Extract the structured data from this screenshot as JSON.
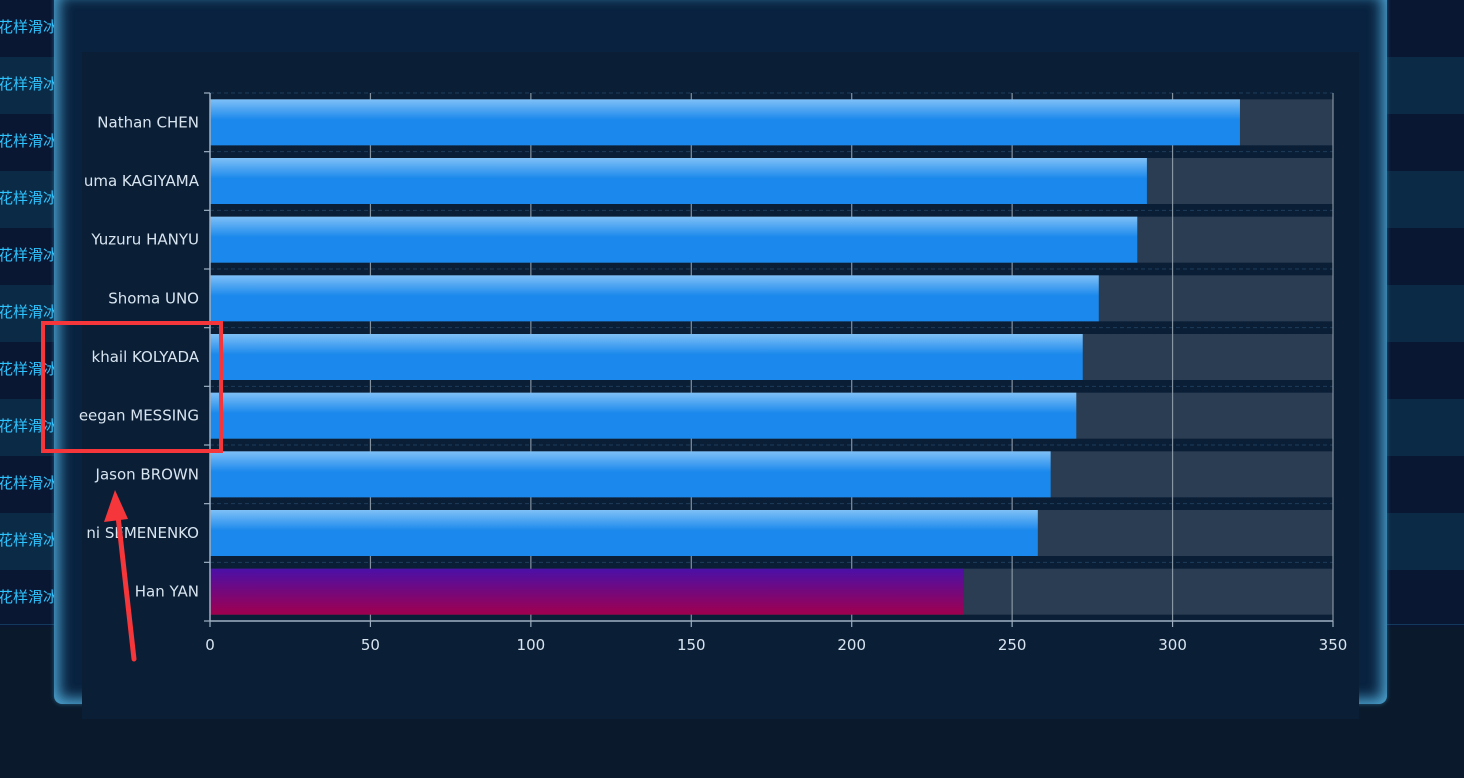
{
  "background": {
    "row_label": "花样滑冰",
    "row_colors": [
      "#0a1733",
      "#0b2a46"
    ],
    "row_count": 11
  },
  "chart_data": {
    "type": "bar",
    "orientation": "horizontal",
    "title": "",
    "xlabel": "",
    "ylabel": "",
    "xlim": [
      0,
      350
    ],
    "x_ticks": [
      0,
      50,
      100,
      150,
      200,
      250,
      300,
      350
    ],
    "x_tick_labels": [
      "0",
      "50",
      "100",
      "150",
      "200",
      "250",
      "300",
      "350"
    ],
    "categories": [
      "Nathan CHEN",
      "Yuma KAGIYAMA",
      "Yuzuru HANYU",
      "Shoma UNO",
      "Mikhail KOLYADA",
      "Keegan MESSING",
      "Jason BROWN",
      "Evgeni SEMENENKO",
      "Han YAN"
    ],
    "visible_category_labels": [
      "Nathan CHEN",
      "uma KAGIYAMA",
      "Yuzuru HANYU",
      "Shoma UNO",
      "khail KOLYADA",
      "eegan MESSING",
      "Jason BROWN",
      "ni SEMENENKO",
      "Han YAN"
    ],
    "values": [
      321,
      292,
      289,
      277,
      272,
      270,
      262,
      258,
      235
    ],
    "background_bar_value": 350,
    "grid": true,
    "highlighted_category": "Han YAN",
    "colors": {
      "bar_top": "#6cb6f5",
      "bar_main": "#1a88ec",
      "highlight_top": "#4a10a8",
      "highlight_bottom": "#a0004e",
      "background_bar": "#2a3d52",
      "axis": "#9fb0c2",
      "label": "#d8e4f0",
      "annotation": "#f5363a"
    }
  }
}
